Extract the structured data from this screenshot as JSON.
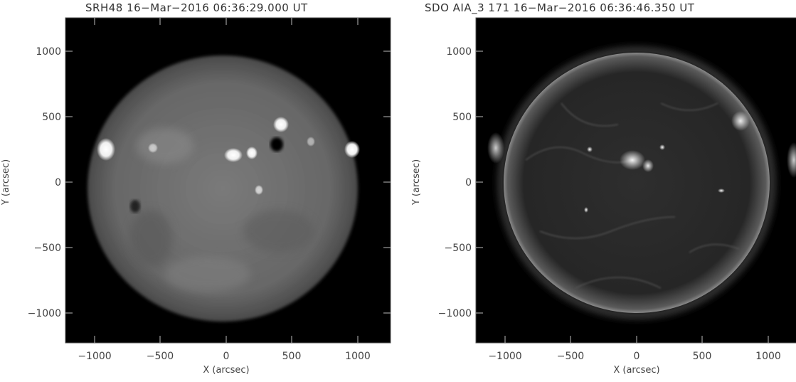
{
  "panels": [
    {
      "title": "SRH48 16−Mar−2016 06:36:29.000 UT",
      "xlabel": "X (arcsec)",
      "ylabel": "Y (arcsec)",
      "xticks": [
        "−1000",
        "−500",
        "0",
        "500",
        "1000"
      ],
      "yticks": [
        "1000",
        "500",
        "0",
        "−500",
        "−1000"
      ]
    },
    {
      "title": "SDO AIA_3 171 16−Mar−2016 06:36:46.350 UT",
      "xlabel": "X (arcsec)",
      "ylabel": "Y (arcsec)",
      "xticks": [
        "−1000",
        "−500",
        "0",
        "500",
        "1000"
      ],
      "yticks": [
        "1000",
        "500",
        "0",
        "−500",
        "−1000"
      ]
    }
  ],
  "colors": {
    "background": "#000000",
    "disk_radio": "#6a6a6a",
    "disk_euv": "#2a2a2a"
  }
}
